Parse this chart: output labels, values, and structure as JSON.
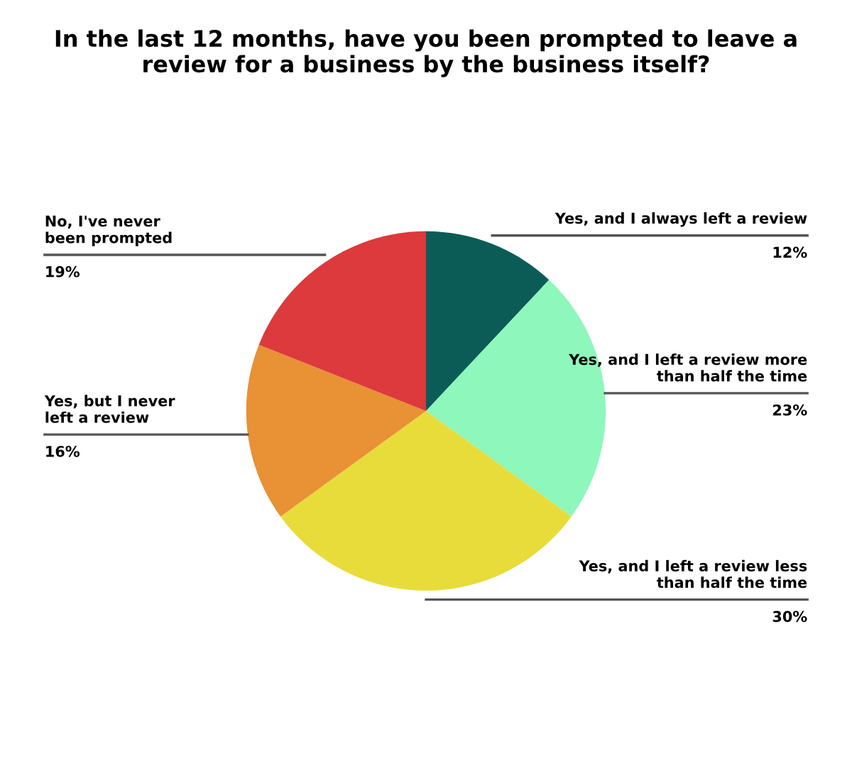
{
  "chart_data": {
    "type": "pie",
    "title": "In the last 12 months, have you been prompted to leave a\nreview for a business by the business itself?",
    "categories": [
      "Yes, and I always left a review",
      "Yes, and I left a review more\nthan half the time",
      "Yes, and I left a review less\nthan half the time",
      "Yes, but I never\nleft a review",
      "No, I've never\nbeen prompted"
    ],
    "values": [
      12,
      23,
      30,
      16,
      19
    ],
    "colors": [
      "#0b5c57",
      "#8ef7bb",
      "#e8dc3a",
      "#e89135",
      "#dc3a3d"
    ],
    "value_labels": [
      "12%",
      "23%",
      "30%",
      "16%",
      "19%"
    ]
  }
}
